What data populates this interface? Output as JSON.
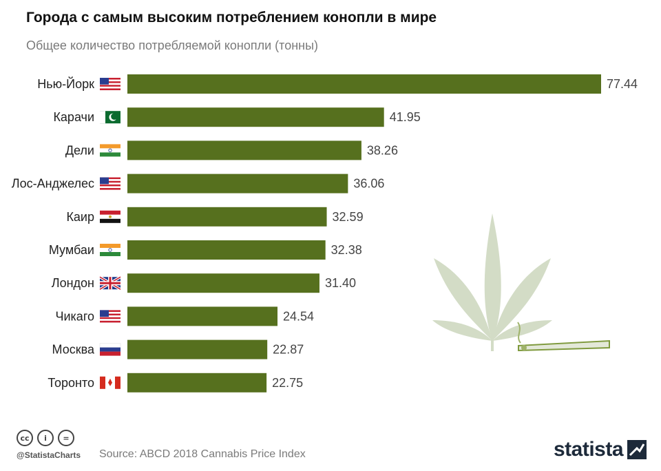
{
  "title": "Города с самым высоким потреблением конопли в мире",
  "subtitle": "Общее количество потребляемой конопли (тонны)",
  "colors": {
    "bar": "#56701e",
    "label": "#222222",
    "value": "#444444"
  },
  "chart_data": {
    "type": "bar",
    "orientation": "horizontal",
    "categories": [
      "Нью-Йорк",
      "Карачи",
      "Дели",
      "Лос-Анджелес",
      "Каир",
      "Мумбаи",
      "Лондон",
      "Чикаго",
      "Москва",
      "Торонто"
    ],
    "flags": [
      "us",
      "pk",
      "in",
      "us",
      "eg",
      "in",
      "gb",
      "us",
      "ru",
      "ca"
    ],
    "values": [
      77.44,
      41.95,
      38.26,
      36.06,
      32.59,
      32.38,
      31.4,
      24.54,
      22.87,
      22.75
    ],
    "value_labels": [
      "77.44",
      "41.95",
      "38.26",
      "36.06",
      "32.59",
      "32.38",
      "31.40",
      "24.54",
      "22.87",
      "22.75"
    ],
    "xlim": [
      0,
      77.44
    ],
    "grid": false,
    "legend": "none"
  },
  "footer": {
    "handle": "@StatistaCharts",
    "source": "Source: ABCD 2018 Cannabis Price Index",
    "brand": "statista",
    "license_icons": [
      "cc-icon",
      "attribution-icon",
      "no-derivatives-icon"
    ]
  }
}
